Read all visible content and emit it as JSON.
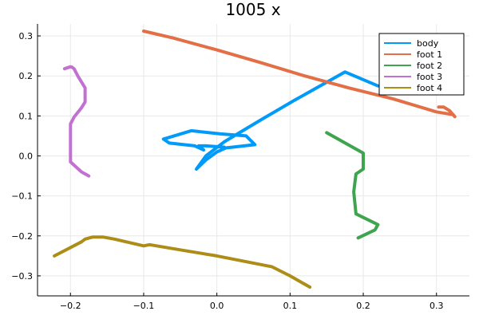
{
  "chart_data": {
    "type": "line",
    "title": "1005 x",
    "xlabel": "",
    "ylabel": "",
    "xlim": [
      -0.245,
      0.345
    ],
    "ylim": [
      -0.35,
      0.33
    ],
    "x_ticks": [
      -0.2,
      -0.1,
      0.0,
      0.1,
      0.2,
      0.3
    ],
    "x_tick_labels": [
      "−0.2",
      "−0.1",
      "0.0",
      "0.1",
      "0.2",
      "0.3"
    ],
    "y_ticks": [
      0.3,
      0.2,
      0.1,
      0.0,
      -0.1,
      -0.2,
      -0.3
    ],
    "y_tick_labels": [
      "0.3",
      "0.2",
      "0.1",
      "0.0",
      "−0.1",
      "−0.2",
      "−0.3"
    ],
    "grid": true,
    "legend_position": "top-right",
    "series": [
      {
        "name": "body",
        "color": "#009AFA",
        "points": [
          [
            0.22,
            0.175
          ],
          [
            0.175,
            0.21
          ],
          [
            0.105,
            0.138
          ],
          [
            0.06,
            0.09
          ],
          [
            0.01,
            0.035
          ],
          [
            -0.015,
            0.0
          ],
          [
            -0.028,
            -0.033
          ],
          [
            -0.015,
            -0.01
          ],
          [
            0.0,
            0.01
          ],
          [
            0.012,
            0.02
          ],
          [
            0.052,
            0.028
          ],
          [
            0.04,
            0.05
          ],
          [
            0.005,
            0.055
          ],
          [
            -0.035,
            0.063
          ],
          [
            -0.073,
            0.042
          ],
          [
            -0.065,
            0.032
          ],
          [
            -0.03,
            0.025
          ],
          [
            -0.018,
            0.015
          ],
          [
            -0.025,
            0.025
          ],
          [
            -0.015,
            0.025
          ],
          [
            0.01,
            0.022
          ]
        ]
      },
      {
        "name": "foot 1",
        "color": "#E36F47",
        "points": [
          [
            -0.1,
            0.312
          ],
          [
            -0.06,
            0.295
          ],
          [
            0.0,
            0.265
          ],
          [
            0.06,
            0.233
          ],
          [
            0.12,
            0.2
          ],
          [
            0.18,
            0.17
          ],
          [
            0.24,
            0.143
          ],
          [
            0.3,
            0.11
          ],
          [
            0.323,
            0.103
          ],
          [
            0.325,
            0.098
          ],
          [
            0.318,
            0.113
          ],
          [
            0.31,
            0.122
          ],
          [
            0.303,
            0.122
          ]
        ]
      },
      {
        "name": "foot 2",
        "color": "#3EA44E",
        "points": [
          [
            0.15,
            0.058
          ],
          [
            0.2,
            0.007
          ],
          [
            0.2,
            -0.033
          ],
          [
            0.19,
            -0.045
          ],
          [
            0.187,
            -0.09
          ],
          [
            0.19,
            -0.145
          ],
          [
            0.22,
            -0.172
          ],
          [
            0.216,
            -0.185
          ],
          [
            0.193,
            -0.205
          ]
        ]
      },
      {
        "name": "foot 3",
        "color": "#C271D2",
        "points": [
          [
            -0.208,
            0.218
          ],
          [
            -0.2,
            0.223
          ],
          [
            -0.198,
            0.222
          ],
          [
            -0.195,
            0.218
          ],
          [
            -0.19,
            0.2
          ],
          [
            -0.18,
            0.17
          ],
          [
            -0.18,
            0.135
          ],
          [
            -0.185,
            0.12
          ],
          [
            -0.195,
            0.097
          ],
          [
            -0.2,
            0.08
          ],
          [
            -0.2,
            0.05
          ],
          [
            -0.2,
            -0.015
          ],
          [
            -0.185,
            -0.04
          ],
          [
            -0.175,
            -0.05
          ]
        ]
      },
      {
        "name": "foot 4",
        "color": "#AC8D18",
        "points": [
          [
            -0.222,
            -0.25
          ],
          [
            -0.185,
            -0.215
          ],
          [
            -0.18,
            -0.208
          ],
          [
            -0.17,
            -0.203
          ],
          [
            -0.155,
            -0.203
          ],
          [
            -0.14,
            -0.208
          ],
          [
            -0.1,
            -0.225
          ],
          [
            -0.092,
            -0.222
          ],
          [
            -0.05,
            -0.235
          ],
          [
            0.0,
            -0.25
          ],
          [
            0.075,
            -0.277
          ],
          [
            0.1,
            -0.3
          ],
          [
            0.127,
            -0.328
          ]
        ]
      }
    ]
  }
}
